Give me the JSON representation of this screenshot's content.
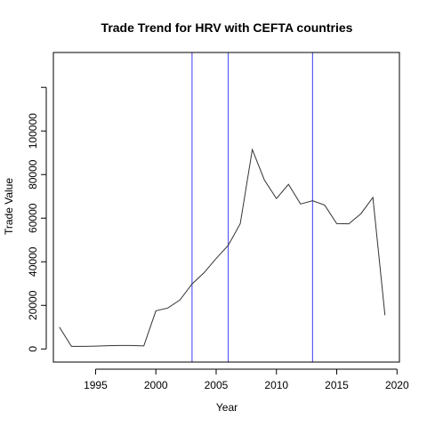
{
  "chart_data": {
    "type": "line",
    "title": "Trade Trend for HRV with CEFTA countries",
    "xlabel": "Year",
    "ylabel": "Trade Value",
    "xlim": [
      1991.5,
      2020.2
    ],
    "ylim": [
      -6000,
      136000
    ],
    "x_ticks": [
      1995,
      2000,
      2005,
      2010,
      2015,
      2020
    ],
    "y_ticks": [
      0,
      20000,
      40000,
      60000,
      80000,
      100000,
      120000
    ],
    "y_tick_labels": [
      "0",
      "20000",
      "40000",
      "60000",
      "80000",
      "100000",
      ""
    ],
    "grid": false,
    "vertical_lines": {
      "x": [
        2003,
        2006,
        2013
      ],
      "color": "#5b5bf5"
    },
    "series": [
      {
        "color": "#333333",
        "x": [
          1992,
          1993,
          1994,
          1995,
          1996,
          1997,
          1998,
          1999,
          2000,
          2001,
          2002,
          2003,
          2004,
          2005,
          2006,
          2007,
          2008,
          2009,
          2010,
          2011,
          2012,
          2013,
          2014,
          2015,
          2016,
          2017,
          2018,
          2019
        ],
        "y": [
          10000,
          1200,
          1200,
          1300,
          1500,
          1600,
          1600,
          1400,
          17500,
          18800,
          22500,
          29800,
          35000,
          41500,
          47500,
          57500,
          91500,
          77500,
          69000,
          75500,
          66500,
          68000,
          66000,
          57500,
          57400,
          62000,
          69500,
          15500
        ]
      }
    ]
  }
}
